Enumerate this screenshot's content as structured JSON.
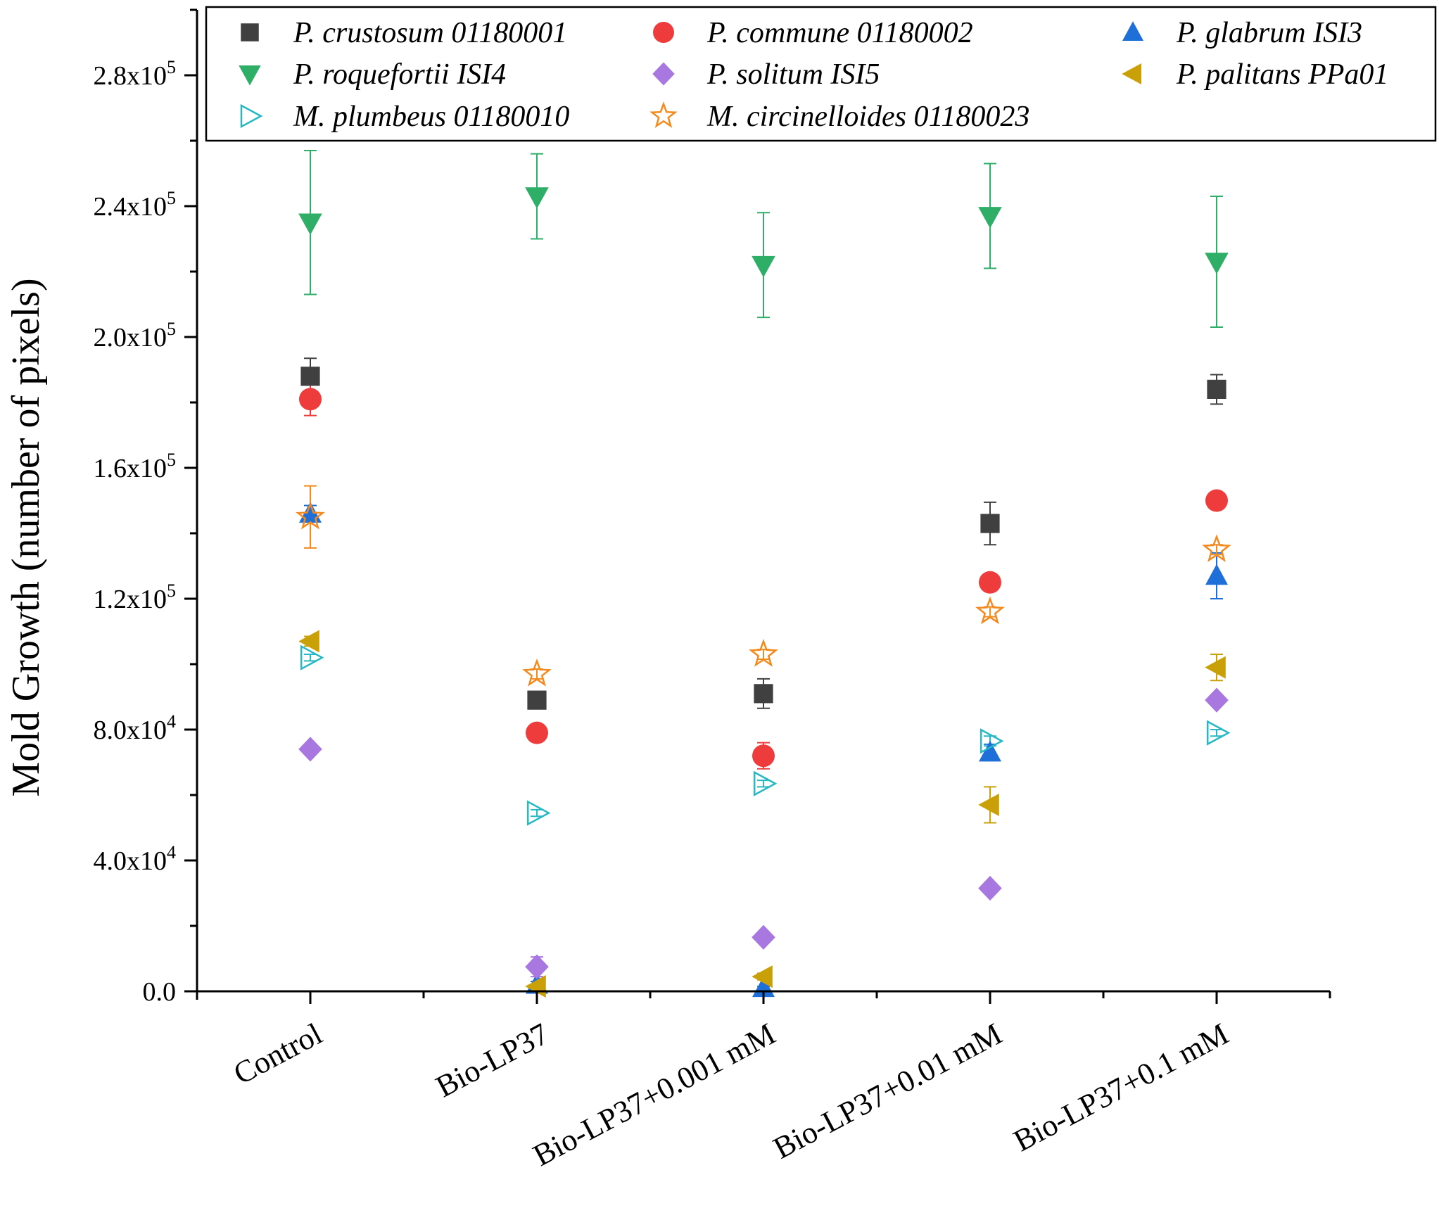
{
  "chart_data": {
    "type": "scatter",
    "title": "",
    "xlabel": "",
    "ylabel": "Mold Growth (number of pixels)",
    "categories": [
      "Control",
      "Bio-LP37",
      "Bio-LP37+0.001 mM",
      "Bio-LP37+0.01 mM",
      "Bio-LP37+0.1 mM"
    ],
    "ylim": [
      0,
      300000
    ],
    "yticks": [
      {
        "value": 0,
        "mantissa": "0.0",
        "exponent": ""
      },
      {
        "value": 40000,
        "mantissa": "4.0x10",
        "exponent": "4"
      },
      {
        "value": 80000,
        "mantissa": "8.0x10",
        "exponent": "4"
      },
      {
        "value": 120000,
        "mantissa": "1.2x10",
        "exponent": "5"
      },
      {
        "value": 160000,
        "mantissa": "1.6x10",
        "exponent": "5"
      },
      {
        "value": 200000,
        "mantissa": "2.0x10",
        "exponent": "5"
      },
      {
        "value": 240000,
        "mantissa": "2.4x10",
        "exponent": "5"
      },
      {
        "value": 280000,
        "mantissa": "2.8x10",
        "exponent": "5"
      }
    ],
    "legend_position": "top",
    "series": [
      {
        "name": "P. crustosum 01180001",
        "marker": "square",
        "color": "#404040",
        "filled": true,
        "values": [
          188000,
          89000,
          91000,
          143000,
          184000
        ],
        "errors": [
          5500,
          2500,
          4500,
          6500,
          4500
        ]
      },
      {
        "name": "P. commune 01180002",
        "marker": "circle",
        "color": "#ee3b3b",
        "filled": true,
        "values": [
          181000,
          79000,
          72000,
          125000,
          150000
        ],
        "errors": [
          5000,
          2000,
          4000,
          2000,
          1000
        ]
      },
      {
        "name": "P. glabrum ISI3",
        "marker": "triangle-up",
        "color": "#1f6fd8",
        "filled": true,
        "values": [
          146000,
          2000,
          1000,
          73000,
          127000
        ],
        "errors": [
          2500,
          1000,
          500,
          2500,
          7000
        ]
      },
      {
        "name": "P. roquefortii ISI4",
        "marker": "triangle-down",
        "color": "#2fae68",
        "filled": true,
        "values": [
          235000,
          243000,
          222000,
          237000,
          223000
        ],
        "errors": [
          22000,
          13000,
          16000,
          16000,
          20000
        ]
      },
      {
        "name": "P. solitum ISI5",
        "marker": "diamond",
        "color": "#a878e0",
        "filled": true,
        "values": [
          74000,
          7500,
          16500,
          31500,
          89000
        ],
        "errors": [
          1000,
          3000,
          1000,
          1000,
          1000
        ]
      },
      {
        "name": "P. palitans PPa01",
        "marker": "triangle-left",
        "color": "#c9a008",
        "filled": true,
        "values": [
          107000,
          1500,
          4500,
          57000,
          99000
        ],
        "errors": [
          1500,
          500,
          1000,
          5500,
          4000
        ]
      },
      {
        "name": "M. plumbeus 01180010",
        "marker": "triangle-right",
        "color": "#26b8c3",
        "filled": false,
        "values": [
          102000,
          54500,
          63500,
          76500,
          79000
        ],
        "errors": [
          1000,
          1000,
          1000,
          1500,
          1000
        ]
      },
      {
        "name": "M. circinelloides 01180023",
        "marker": "star",
        "color": "#f28a1e",
        "filled": false,
        "values": [
          145000,
          97000,
          103000,
          116000,
          135000
        ],
        "errors": [
          9500,
          1500,
          1500,
          1500,
          1500
        ]
      }
    ]
  }
}
